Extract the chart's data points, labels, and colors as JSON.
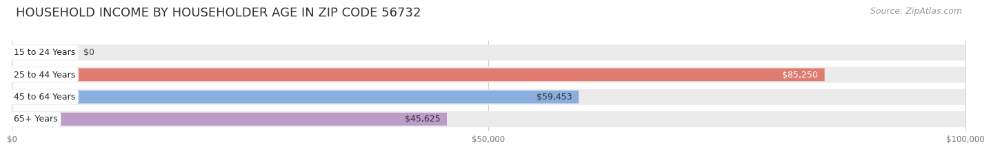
{
  "title": "HOUSEHOLD INCOME BY HOUSEHOLDER AGE IN ZIP CODE 56732",
  "source": "Source: ZipAtlas.com",
  "categories": [
    "15 to 24 Years",
    "25 to 44 Years",
    "45 to 64 Years",
    "65+ Years"
  ],
  "values": [
    0,
    85250,
    59453,
    45625
  ],
  "bar_colors": [
    "#f2c18c",
    "#e07b72",
    "#8aaedd",
    "#bc9cc8"
  ],
  "label_colors": [
    "#333333",
    "#ffffff",
    "#333333",
    "#333333"
  ],
  "value_labels": [
    "$0",
    "$85,250",
    "$59,453",
    "$45,625"
  ],
  "x_ticks": [
    0,
    50000,
    100000
  ],
  "x_tick_labels": [
    "$0",
    "$50,000",
    "$100,000"
  ],
  "xlim": [
    0,
    100000
  ],
  "background_color": "#ffffff",
  "bar_background_color": "#ebebeb",
  "title_fontsize": 13,
  "source_fontsize": 9,
  "label_fontsize": 9,
  "value_fontsize": 9
}
